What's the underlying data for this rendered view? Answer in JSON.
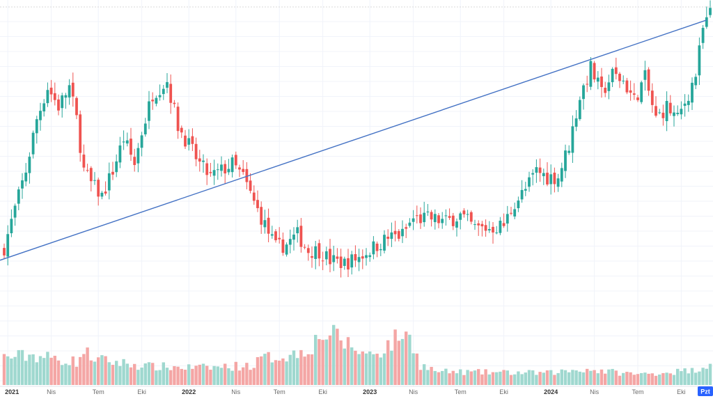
{
  "chart_data": {
    "type": "candlestick",
    "title": "",
    "xlabel": "",
    "ylabel": "",
    "grid": true,
    "legend": "none",
    "y_scale": "linear",
    "ylim": [
      0,
      100
    ],
    "volume_ylim": [
      0,
      100
    ],
    "time_axis_ticks": [
      {
        "label": "2021",
        "index": 1,
        "year": true
      },
      {
        "label": "Nis",
        "index": 13,
        "year": false
      },
      {
        "label": "Tem",
        "index": 26,
        "year": false
      },
      {
        "label": "Eki",
        "index": 38,
        "year": false
      },
      {
        "label": "2022",
        "index": 51,
        "year": true
      },
      {
        "label": "Nis",
        "index": 64,
        "year": false
      },
      {
        "label": "Tem",
        "index": 76,
        "year": false
      },
      {
        "label": "Eki",
        "index": 88,
        "year": false
      },
      {
        "label": "2023",
        "index": 101,
        "year": true
      },
      {
        "label": "Nis",
        "index": 113,
        "year": false
      },
      {
        "label": "Tem",
        "index": 126,
        "year": false
      },
      {
        "label": "Eki",
        "index": 138,
        "year": false
      },
      {
        "label": "2024",
        "index": 151,
        "year": true
      },
      {
        "label": "Nis",
        "index": 163,
        "year": false
      },
      {
        "label": "Tem",
        "index": 175,
        "year": false
      },
      {
        "label": "Eki",
        "index": 187,
        "year": false
      }
    ],
    "current_time_label": "Pzt",
    "keypoints": [
      [
        0,
        26
      ],
      [
        3,
        38
      ],
      [
        6,
        50
      ],
      [
        9,
        66
      ],
      [
        12,
        76
      ],
      [
        15,
        70
      ],
      [
        18,
        76
      ],
      [
        20,
        66
      ],
      [
        22,
        50
      ],
      [
        24,
        46
      ],
      [
        27,
        42
      ],
      [
        30,
        50
      ],
      [
        33,
        60
      ],
      [
        36,
        52
      ],
      [
        38,
        62
      ],
      [
        41,
        74
      ],
      [
        45,
        78
      ],
      [
        48,
        64
      ],
      [
        51,
        58
      ],
      [
        54,
        52
      ],
      [
        57,
        48
      ],
      [
        60,
        50
      ],
      [
        63,
        52
      ],
      [
        66,
        48
      ],
      [
        69,
        40
      ],
      [
        72,
        33
      ],
      [
        75,
        26
      ],
      [
        78,
        27
      ],
      [
        81,
        30
      ],
      [
        84,
        25
      ],
      [
        87,
        25
      ],
      [
        90,
        22
      ],
      [
        94,
        21
      ],
      [
        98,
        23
      ],
      [
        102,
        26
      ],
      [
        106,
        29
      ],
      [
        110,
        30
      ],
      [
        113,
        35
      ],
      [
        118,
        35
      ],
      [
        122,
        34
      ],
      [
        126,
        36
      ],
      [
        130,
        32
      ],
      [
        134,
        32
      ],
      [
        138,
        33
      ],
      [
        141,
        40
      ],
      [
        144,
        44
      ],
      [
        147,
        50
      ],
      [
        150,
        48
      ],
      [
        153,
        48
      ],
      [
        156,
        58
      ],
      [
        159,
        73
      ],
      [
        162,
        82
      ],
      [
        165,
        74
      ],
      [
        168,
        80
      ],
      [
        171,
        78
      ],
      [
        174,
        72
      ],
      [
        177,
        79
      ],
      [
        180,
        66
      ],
      [
        183,
        70
      ],
      [
        186,
        66
      ],
      [
        189,
        74
      ],
      [
        191,
        80
      ],
      [
        193,
        94
      ],
      [
        195,
        99
      ]
    ],
    "volume_keypoints": [
      [
        0,
        42
      ],
      [
        8,
        45
      ],
      [
        20,
        35
      ],
      [
        22,
        50
      ],
      [
        26,
        38
      ],
      [
        40,
        28
      ],
      [
        55,
        26
      ],
      [
        69,
        30
      ],
      [
        71,
        40
      ],
      [
        80,
        46
      ],
      [
        85,
        60
      ],
      [
        88,
        78
      ],
      [
        92,
        72
      ],
      [
        96,
        58
      ],
      [
        100,
        46
      ],
      [
        104,
        52
      ],
      [
        108,
        68
      ],
      [
        110,
        80
      ],
      [
        113,
        62
      ],
      [
        115,
        30
      ],
      [
        120,
        20
      ],
      [
        150,
        18
      ],
      [
        160,
        24
      ],
      [
        175,
        16
      ],
      [
        190,
        22
      ],
      [
        195,
        32
      ]
    ],
    "trendline": {
      "from": {
        "index": 0,
        "price": 22
      },
      "to": {
        "index": 194,
        "price": 97
      }
    },
    "colors": {
      "up": "#26a69a",
      "down": "#ef5350",
      "volume_up": "#9fd8cf",
      "volume_down": "#f4a6a5",
      "trendline": "#4472c4",
      "grid": "#f0f3fa",
      "axis_text": "#6b6b6b",
      "current_label_bg": "#2962ff"
    }
  }
}
